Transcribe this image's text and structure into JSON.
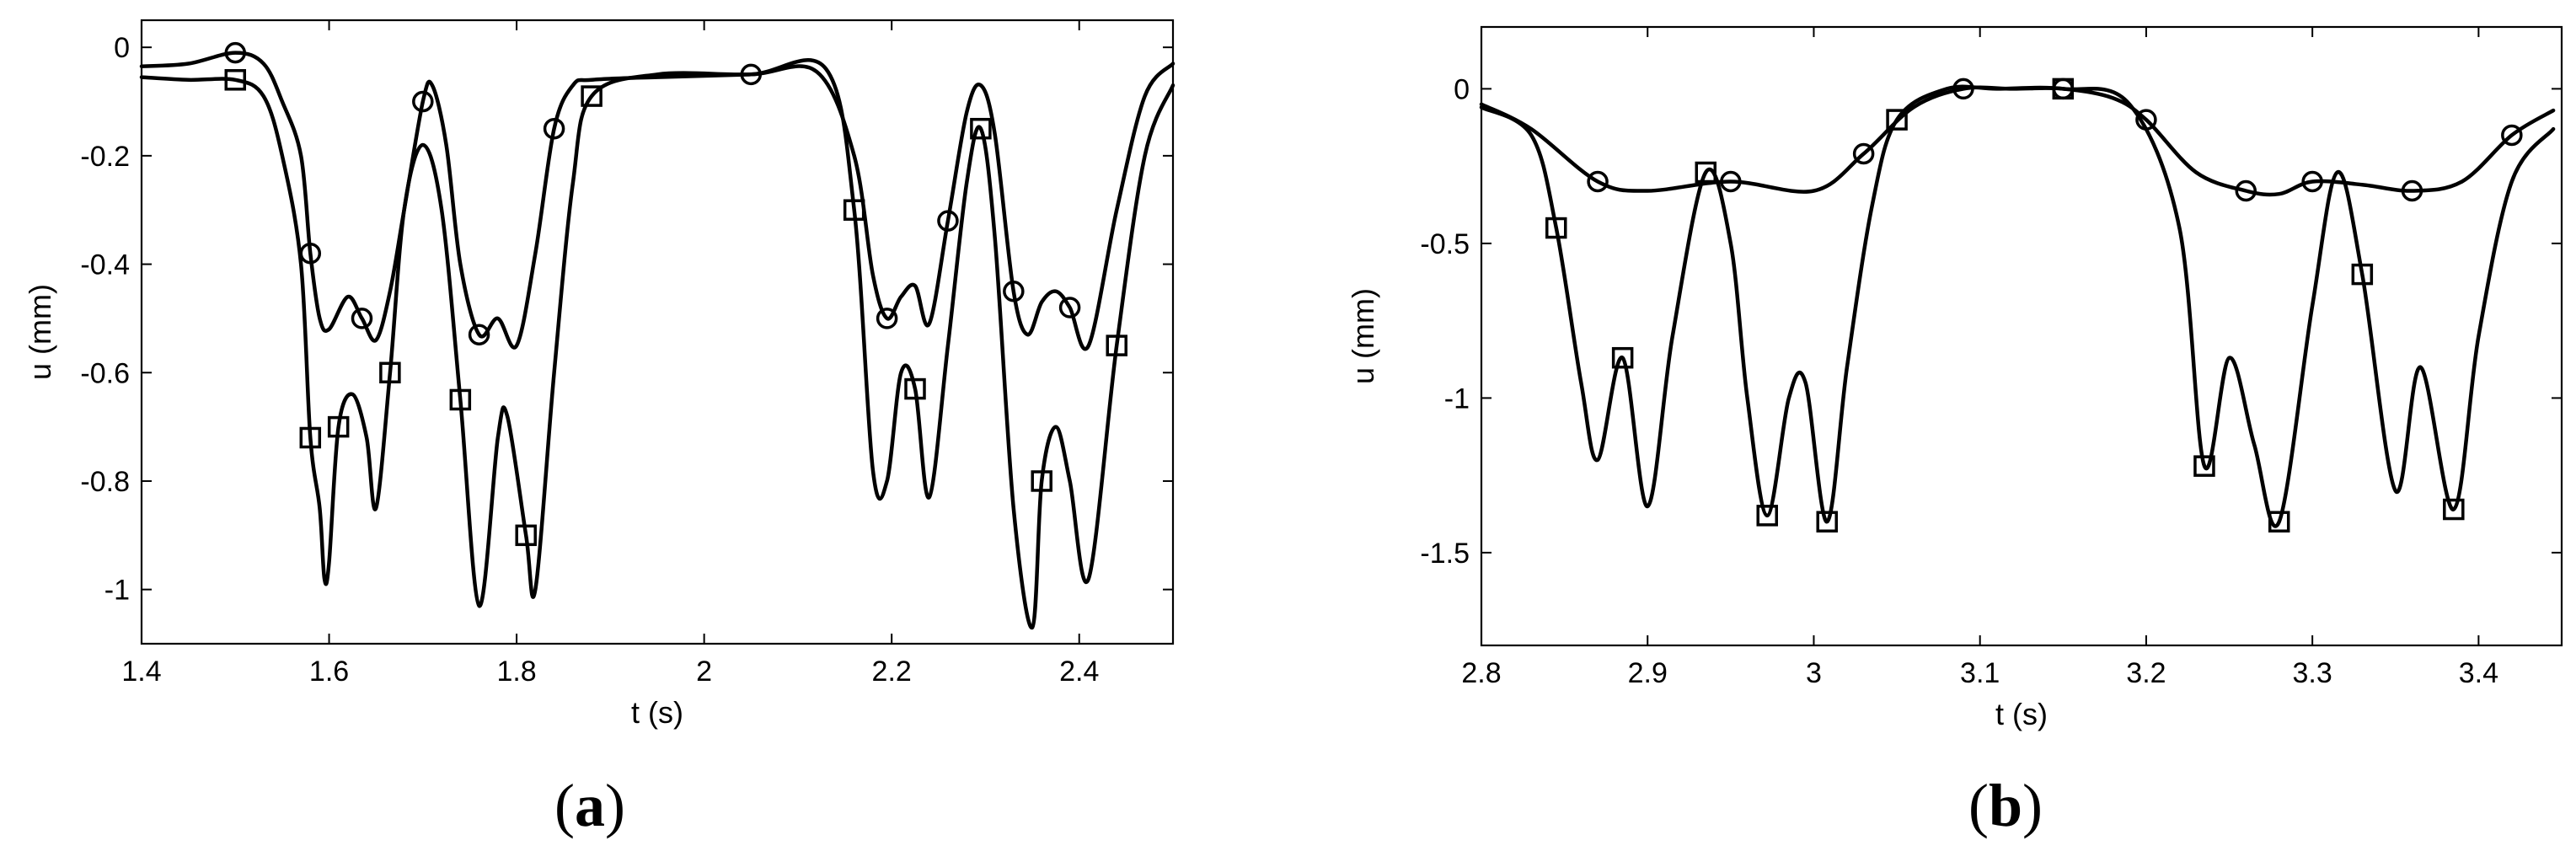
{
  "chart_data": [
    {
      "type": "line",
      "panel_label": "a",
      "xlabel": "t (s)",
      "ylabel": "u (mm)",
      "xlim": [
        1.4,
        2.5
      ],
      "ylim": [
        -1.1,
        0.05
      ],
      "xticks": [
        1.4,
        1.6,
        1.8,
        2,
        2.2,
        2.4
      ],
      "xtick_labels": [
        "1.4",
        "1.6",
        "1.8",
        "2",
        "2.2",
        "2.4"
      ],
      "yticks": [
        0,
        -0.2,
        -0.4,
        -0.6,
        -0.8,
        -1
      ],
      "ytick_labels": [
        "0",
        "-0.2",
        "-0.4",
        "-0.6",
        "-0.8",
        "-1"
      ],
      "grid": false,
      "series": [
        {
          "marker": "circle",
          "x": [
            1.4,
            1.45,
            1.5,
            1.53,
            1.55,
            1.57,
            1.58,
            1.59,
            1.6,
            1.62,
            1.635,
            1.65,
            1.665,
            1.68,
            1.7,
            1.71,
            1.725,
            1.74,
            1.76,
            1.78,
            1.8,
            1.82,
            1.84,
            1.86,
            1.88,
            1.95,
            2.05,
            2.12,
            2.16,
            2.18,
            2.195,
            2.21,
            2.225,
            2.24,
            2.26,
            2.28,
            2.295,
            2.31,
            2.33,
            2.345,
            2.36,
            2.375,
            2.39,
            2.41,
            2.44,
            2.47,
            2.5
          ],
          "y": [
            -0.035,
            -0.03,
            -0.01,
            -0.03,
            -0.1,
            -0.2,
            -0.38,
            -0.5,
            -0.52,
            -0.46,
            -0.5,
            -0.54,
            -0.45,
            -0.3,
            -0.1,
            -0.07,
            -0.18,
            -0.4,
            -0.53,
            -0.5,
            -0.55,
            -0.38,
            -0.15,
            -0.07,
            -0.06,
            -0.055,
            -0.05,
            -0.045,
            -0.2,
            -0.42,
            -0.5,
            -0.46,
            -0.44,
            -0.51,
            -0.32,
            -0.12,
            -0.07,
            -0.16,
            -0.45,
            -0.53,
            -0.47,
            -0.45,
            -0.48,
            -0.55,
            -0.3,
            -0.09,
            -0.03
          ]
        },
        {
          "marker": "square",
          "x": [
            1.4,
            1.45,
            1.5,
            1.53,
            1.55,
            1.57,
            1.58,
            1.59,
            1.595,
            1.6,
            1.61,
            1.625,
            1.64,
            1.65,
            1.665,
            1.68,
            1.7,
            1.72,
            1.74,
            1.76,
            1.78,
            1.79,
            1.81,
            1.82,
            1.84,
            1.86,
            1.88,
            1.95,
            2.05,
            2.13,
            2.16,
            2.18,
            2.195,
            2.21,
            2.225,
            2.24,
            2.26,
            2.28,
            2.295,
            2.31,
            2.33,
            2.35,
            2.36,
            2.375,
            2.39,
            2.41,
            2.44,
            2.47,
            2.5
          ],
          "y": [
            -0.055,
            -0.06,
            -0.06,
            -0.09,
            -0.2,
            -0.4,
            -0.72,
            -0.85,
            -0.98,
            -0.95,
            -0.7,
            -0.64,
            -0.72,
            -0.85,
            -0.6,
            -0.3,
            -0.18,
            -0.3,
            -0.65,
            -1.03,
            -0.72,
            -0.68,
            -0.9,
            -1.0,
            -0.6,
            -0.25,
            -0.09,
            -0.05,
            -0.05,
            -0.04,
            -0.3,
            -0.78,
            -0.8,
            -0.6,
            -0.63,
            -0.83,
            -0.55,
            -0.25,
            -0.15,
            -0.35,
            -0.85,
            -1.07,
            -0.8,
            -0.7,
            -0.8,
            -0.98,
            -0.55,
            -0.2,
            -0.07
          ]
        }
      ]
    },
    {
      "type": "line",
      "panel_label": "b",
      "xlabel": "t (s)",
      "ylabel": "u (mm)",
      "xlim": [
        2.8,
        3.45
      ],
      "ylim": [
        -1.8,
        0.2
      ],
      "xticks": [
        2.8,
        2.9,
        3.0,
        3.1,
        3.2,
        3.3,
        3.4
      ],
      "xtick_labels": [
        "2.8",
        "2.9",
        "3",
        "3.1",
        "3.2",
        "3.3",
        "3.4"
      ],
      "yticks": [
        0,
        -0.5,
        -1,
        -1.5
      ],
      "ytick_labels": [
        "0",
        "-0.5",
        "-1",
        "-1.5"
      ],
      "grid": false,
      "series": [
        {
          "marker": "circle",
          "x": [
            2.8,
            2.83,
            2.87,
            2.9,
            2.95,
            3.0,
            3.03,
            3.06,
            3.09,
            3.12,
            3.15,
            3.18,
            3.2,
            3.23,
            3.26,
            3.28,
            3.3,
            3.33,
            3.36,
            3.39,
            3.42,
            3.445
          ],
          "y": [
            -0.05,
            -0.13,
            -0.3,
            -0.33,
            -0.3,
            -0.33,
            -0.21,
            -0.06,
            0.0,
            0.0,
            0.0,
            -0.03,
            -0.1,
            -0.27,
            -0.33,
            -0.34,
            -0.3,
            -0.31,
            -0.33,
            -0.3,
            -0.15,
            -0.07
          ]
        },
        {
          "marker": "square",
          "x": [
            2.8,
            2.83,
            2.845,
            2.86,
            2.87,
            2.885,
            2.9,
            2.915,
            2.935,
            2.95,
            2.96,
            2.972,
            2.985,
            2.995,
            3.008,
            3.02,
            3.035,
            3.05,
            3.08,
            3.11,
            3.15,
            3.19,
            3.22,
            3.235,
            3.25,
            3.265,
            3.28,
            3.3,
            3.315,
            3.33,
            3.35,
            3.365,
            3.385,
            3.4,
            3.42,
            3.445
          ],
          "y": [
            -0.06,
            -0.15,
            -0.45,
            -0.95,
            -1.2,
            -0.87,
            -1.35,
            -0.8,
            -0.27,
            -0.5,
            -1.0,
            -1.38,
            -1.0,
            -0.95,
            -1.4,
            -0.9,
            -0.38,
            -0.1,
            0.0,
            0.0,
            0.0,
            -0.05,
            -0.45,
            -1.22,
            -0.87,
            -1.15,
            -1.4,
            -0.7,
            -0.27,
            -0.6,
            -1.3,
            -0.9,
            -1.36,
            -0.8,
            -0.3,
            -0.13
          ]
        }
      ]
    }
  ]
}
